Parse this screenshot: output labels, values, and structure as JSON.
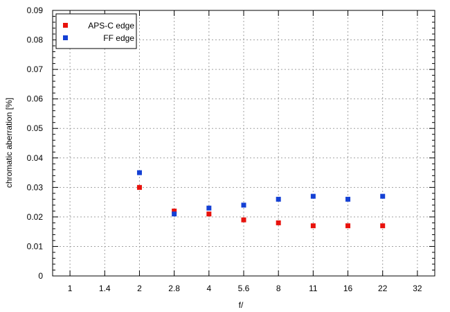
{
  "chart_data": {
    "type": "scatter",
    "title": "",
    "xlabel": "f/",
    "ylabel": "chromatic  aberration [%]",
    "categories": [
      "1",
      "1.4",
      "2",
      "2.8",
      "4",
      "5.6",
      "8",
      "11",
      "16",
      "22",
      "32"
    ],
    "ylim": [
      0,
      0.09
    ],
    "yticks": [
      "0",
      "0.01",
      "0.02",
      "0.03",
      "0.04",
      "0.05",
      "0.06",
      "0.07",
      "0.08",
      "0.09"
    ],
    "grid": true,
    "legend_position": "top-left",
    "series": [
      {
        "name": "APS-C edge",
        "color": "#e8120c",
        "points": [
          {
            "x": "2",
            "y": 0.03
          },
          {
            "x": "2.8",
            "y": 0.022
          },
          {
            "x": "4",
            "y": 0.021
          },
          {
            "x": "5.6",
            "y": 0.019
          },
          {
            "x": "8",
            "y": 0.018
          },
          {
            "x": "11",
            "y": 0.017
          },
          {
            "x": "16",
            "y": 0.017
          },
          {
            "x": "22",
            "y": 0.017
          }
        ]
      },
      {
        "name": "FF edge",
        "color": "#1440d4",
        "points": [
          {
            "x": "2",
            "y": 0.035
          },
          {
            "x": "2.8",
            "y": 0.021
          },
          {
            "x": "4",
            "y": 0.023
          },
          {
            "x": "5.6",
            "y": 0.024
          },
          {
            "x": "8",
            "y": 0.026
          },
          {
            "x": "11",
            "y": 0.027
          },
          {
            "x": "16",
            "y": 0.026
          },
          {
            "x": "22",
            "y": 0.027
          }
        ]
      }
    ]
  }
}
